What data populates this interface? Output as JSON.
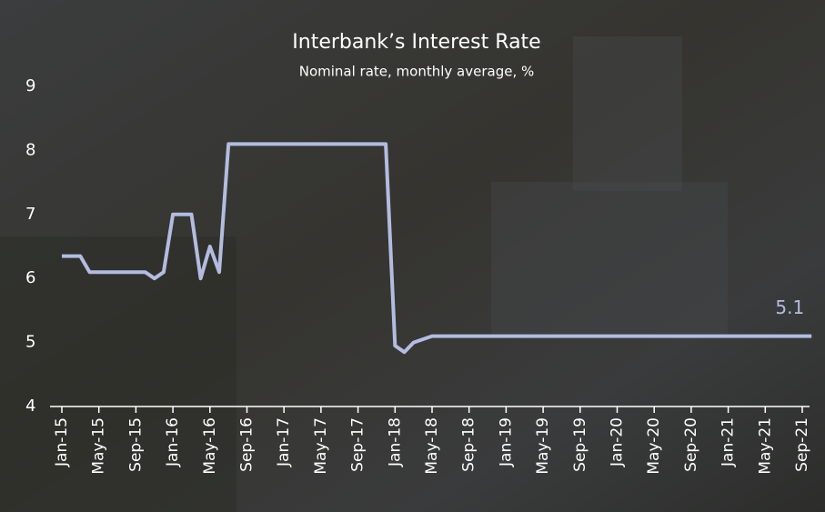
{
  "chart_data": {
    "type": "line",
    "title": "Interbank’s Interest Rate",
    "subtitle": "Nominal rate, monthly average, %",
    "categories": [
      "Jan-15",
      null,
      null,
      null,
      "May-15",
      null,
      null,
      null,
      "Sep-15",
      null,
      null,
      null,
      "Jan-16",
      null,
      null,
      null,
      "May-16",
      null,
      null,
      null,
      "Sep-16",
      null,
      null,
      null,
      "Jan-17",
      null,
      null,
      null,
      "May-17",
      null,
      null,
      null,
      "Sep-17",
      null,
      null,
      null,
      "Jan-18",
      null,
      null,
      null,
      "May-18",
      null,
      null,
      null,
      "Sep-18",
      null,
      null,
      null,
      "Jan-19",
      null,
      null,
      null,
      "May-19",
      null,
      null,
      null,
      "Sep-19",
      null,
      null,
      null,
      "Jan-20",
      null,
      null,
      null,
      "May-20",
      null,
      null,
      null,
      "Sep-20",
      null,
      null,
      null,
      "Jan-21",
      null,
      null,
      null,
      "May-21",
      null,
      null,
      null,
      "Sep-21",
      null
    ],
    "values": [
      6.35,
      6.35,
      6.35,
      6.1,
      6.1,
      6.1,
      6.1,
      6.1,
      6.1,
      6.1,
      6.0,
      6.1,
      7.0,
      7.0,
      7.0,
      6.0,
      6.5,
      6.1,
      8.1,
      8.1,
      8.1,
      8.1,
      8.1,
      8.1,
      8.1,
      8.1,
      8.1,
      8.1,
      8.1,
      8.1,
      8.1,
      8.1,
      8.1,
      8.1,
      8.1,
      8.1,
      4.95,
      4.85,
      5.0,
      5.05,
      5.1,
      5.1,
      5.1,
      5.1,
      5.1,
      5.1,
      5.1,
      5.1,
      5.1,
      5.1,
      5.1,
      5.1,
      5.1,
      5.1,
      5.1,
      5.1,
      5.1,
      5.1,
      5.1,
      5.1,
      5.1,
      5.1,
      5.1,
      5.1,
      5.1,
      5.1,
      5.1,
      5.1,
      5.1,
      5.1,
      5.1,
      5.1,
      5.1,
      5.1,
      5.1,
      5.1,
      5.1,
      5.1,
      5.1,
      5.1,
      5.1,
      5.1
    ],
    "color": "#b3bce0",
    "ylim": [
      4,
      9
    ],
    "yticks": [
      4,
      5,
      6,
      7,
      8,
      9
    ],
    "grid": false
  }
}
